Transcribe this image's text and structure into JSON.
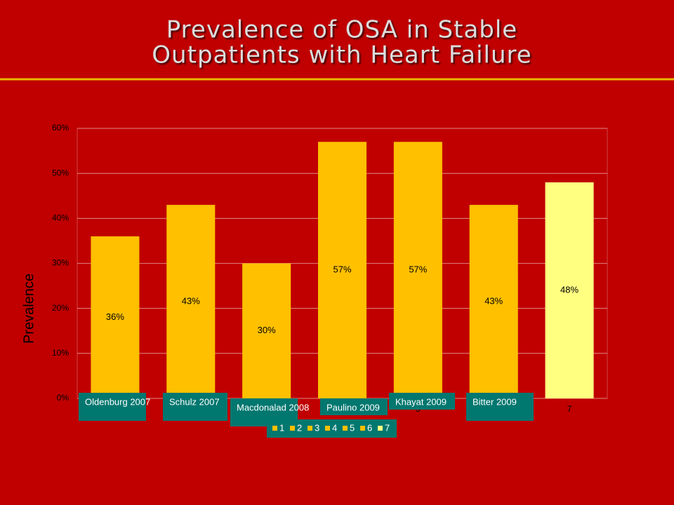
{
  "chart_data": {
    "type": "bar",
    "title": [
      "Prevalence of OSA in Stable",
      "Outpatients with Heart Failure"
    ],
    "y_label": "Prevalence",
    "categories": [
      "1",
      "2",
      "3",
      "4",
      "5",
      "6",
      "7"
    ],
    "values": [
      36,
      43,
      30,
      57,
      57,
      43,
      48
    ],
    "value_labels": [
      "36%",
      "43%",
      "30%",
      "57%",
      "57%",
      "43%",
      "48%"
    ],
    "colors": [
      "#ffc000",
      "#ffc000",
      "#ffc000",
      "#ffc000",
      "#ffc000",
      "#ffc000",
      "#ffff80"
    ],
    "ylim": [
      0,
      60
    ],
    "yticks": [
      {
        "value": 0,
        "label": "0%"
      },
      {
        "value": 10,
        "label": "10%"
      },
      {
        "value": 20,
        "label": "20%"
      },
      {
        "value": 30,
        "label": "30%"
      },
      {
        "value": 40,
        "label": "40%"
      },
      {
        "value": 50,
        "label": "50%"
      },
      {
        "value": 60,
        "label": "60%"
      }
    ],
    "grid": true,
    "study_labels": [
      "Oldenburg 2007",
      "Schulz 2007",
      "Macdonalad 2008",
      "Paulino 2009",
      "Khayat 2009",
      "Bitter 2009"
    ]
  }
}
